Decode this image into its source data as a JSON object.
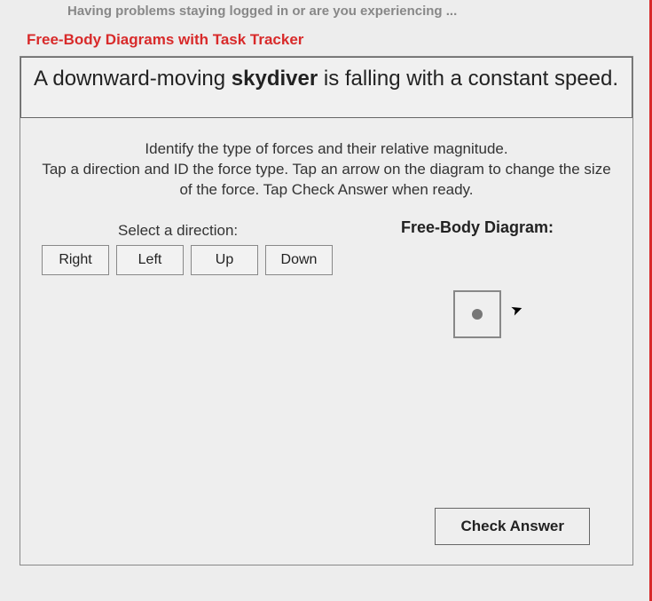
{
  "header": {
    "login_issue_text": "Having problems staying logged in or are you experiencing ..."
  },
  "section": {
    "title": "Free-Body Diagrams with Task Tracker"
  },
  "problem": {
    "prefix": "A downward-moving ",
    "bold_word": "skydiver",
    "suffix": " is falling with a constant speed."
  },
  "instructions": {
    "line1": "Identify the type of forces and their relative magnitude.",
    "line2": "Tap a direction and ID the force type. Tap an arrow on the diagram to change the size of the force. Tap Check Answer when ready."
  },
  "direction_select": {
    "label": "Select a direction:",
    "buttons": {
      "right": "Right",
      "left": "Left",
      "up": "Up",
      "down": "Down"
    }
  },
  "fbd": {
    "title": "Free-Body Diagram:"
  },
  "actions": {
    "check_answer": "Check Answer"
  },
  "colors": {
    "accent": "#d82a2a",
    "border": "#888888",
    "background": "#ededed",
    "text": "#222222"
  }
}
